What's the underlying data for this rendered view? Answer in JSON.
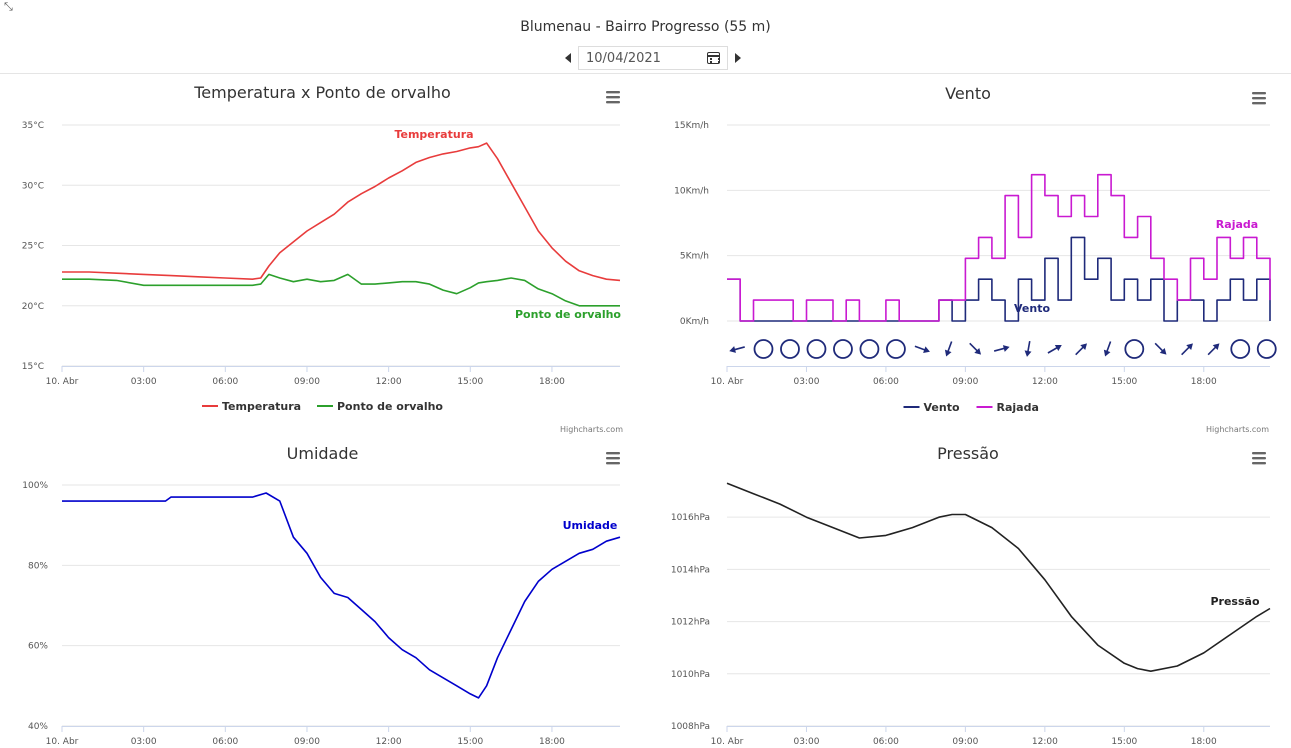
{
  "page": {
    "title": "Blumenau - Bairro Progresso (55 m)",
    "date_value": "10/04/2021"
  },
  "icons": [
    "prev-arrow-icon",
    "next-arrow-icon",
    "calendar-icon",
    "hamburger-menu-icon",
    "wind-direction-arrow-icon",
    "calm-circle-icon"
  ],
  "credits": "Highcharts.com",
  "chart_data": [
    {
      "type": "line",
      "title": "Temperatura x Ponto de orvalho",
      "x_ticks": [
        "10. Abr",
        "03:00",
        "06:00",
        "09:00",
        "12:00",
        "15:00",
        "18:00"
      ],
      "y_ticks": [
        "15°C",
        "20°C",
        "25°C",
        "30°C",
        "35°C"
      ],
      "ylim": [
        15,
        35
      ],
      "legend": "bottom-center",
      "grid": true,
      "x_hours": [
        0,
        1,
        2,
        3,
        4,
        5,
        6,
        7,
        7.3,
        7.6,
        8,
        8.5,
        9,
        9.5,
        10,
        10.5,
        11,
        11.5,
        12,
        12.5,
        13,
        13.5,
        14,
        14.5,
        15,
        15.3,
        15.6,
        16,
        16.5,
        17,
        17.5,
        18,
        18.5,
        19,
        19.5,
        20,
        20.5
      ],
      "series": [
        {
          "name": "Temperatura",
          "color": "#e83c3c",
          "values": [
            22.8,
            22.8,
            22.7,
            22.6,
            22.5,
            22.4,
            22.3,
            22.2,
            22.3,
            23.3,
            24.4,
            25.3,
            26.2,
            26.9,
            27.6,
            28.6,
            29.3,
            29.9,
            30.6,
            31.2,
            31.9,
            32.3,
            32.6,
            32.8,
            33.1,
            33.2,
            33.5,
            32.2,
            30.2,
            28.2,
            26.2,
            24.8,
            23.7,
            22.9,
            22.5,
            22.2,
            22.1
          ]
        },
        {
          "name": "Ponto de orvalho",
          "color": "#2ca02c",
          "values": [
            22.2,
            22.2,
            22.1,
            21.7,
            21.7,
            21.7,
            21.7,
            21.7,
            21.8,
            22.6,
            22.3,
            22.0,
            22.2,
            22.0,
            22.1,
            22.6,
            21.8,
            21.8,
            21.9,
            22.0,
            22.0,
            21.8,
            21.3,
            21.0,
            21.5,
            21.9,
            22.0,
            22.1,
            22.3,
            22.1,
            21.4,
            21.0,
            20.4,
            20.0,
            20.0,
            20.0,
            20.0
          ]
        }
      ]
    },
    {
      "type": "line",
      "title": "Vento",
      "x_ticks": [
        "10. Abr",
        "03:00",
        "06:00",
        "09:00",
        "12:00",
        "15:00",
        "18:00"
      ],
      "y_ticks": [
        "0Km/h",
        "5Km/h",
        "10Km/h",
        "15Km/h"
      ],
      "ylim": [
        0,
        15
      ],
      "legend": "bottom-center",
      "grid": true,
      "x_hours": [
        0,
        0.5,
        1,
        1.5,
        2,
        2.5,
        3,
        3.5,
        4,
        4.5,
        5,
        5.5,
        6,
        6.5,
        7,
        7.5,
        8,
        8.5,
        9,
        9.5,
        10,
        10.5,
        11,
        11.5,
        12,
        12.5,
        13,
        13.5,
        14,
        14.5,
        15,
        15.5,
        16,
        16.5,
        17,
        17.5,
        18,
        18.5,
        19,
        19.5,
        20,
        20.5
      ],
      "series": [
        {
          "name": "Vento",
          "color": "#1f2a7a",
          "values": [
            3.2,
            0,
            0,
            0,
            0,
            0,
            0,
            0,
            0,
            0,
            0,
            0,
            0,
            0,
            0,
            0,
            1.6,
            0,
            1.6,
            3.2,
            1.6,
            0,
            3.2,
            1.6,
            4.8,
            1.6,
            6.4,
            3.2,
            4.8,
            1.6,
            3.2,
            1.6,
            3.2,
            0,
            1.6,
            1.6,
            0,
            1.6,
            3.2,
            1.6,
            3.2,
            0
          ]
        },
        {
          "name": "Rajada",
          "color": "#c91ad1",
          "values": [
            3.2,
            0,
            1.6,
            1.6,
            1.6,
            0,
            1.6,
            1.6,
            0,
            1.6,
            0,
            0,
            1.6,
            0,
            0,
            0,
            1.6,
            1.6,
            4.8,
            6.4,
            4.8,
            9.6,
            6.4,
            11.2,
            9.6,
            8.0,
            9.6,
            8.0,
            11.2,
            9.6,
            6.4,
            8.0,
            4.8,
            3.2,
            1.6,
            4.8,
            3.2,
            6.4,
            4.8,
            6.4,
            4.8,
            1.6
          ]
        }
      ],
      "wind_direction_hours": [
        0,
        1,
        2,
        3,
        4,
        5,
        6,
        7,
        8,
        9,
        10,
        11,
        12,
        13,
        14,
        15,
        16,
        17,
        18,
        19,
        20
      ],
      "wind_direction_degrees": [
        255,
        null,
        null,
        null,
        null,
        null,
        null,
        110,
        200,
        135,
        75,
        190,
        60,
        45,
        200,
        null,
        135,
        45,
        45,
        null,
        null
      ]
    },
    {
      "type": "line",
      "title": "Umidade",
      "x_ticks": [
        "10. Abr",
        "03:00",
        "06:00",
        "09:00",
        "12:00",
        "15:00",
        "18:00"
      ],
      "y_ticks": [
        "40%",
        "60%",
        "80%",
        "100%"
      ],
      "ylim": [
        40,
        100
      ],
      "legend": "none",
      "grid": true,
      "x_hours": [
        0,
        1,
        2,
        3,
        3.8,
        4,
        5,
        6,
        7,
        7.5,
        8,
        8.5,
        9,
        9.5,
        10,
        10.5,
        11,
        11.5,
        12,
        12.5,
        13,
        13.5,
        14,
        14.5,
        15,
        15.3,
        15.6,
        16,
        16.5,
        17,
        17.5,
        18,
        18.5,
        19,
        19.5,
        20,
        20.5
      ],
      "series": [
        {
          "name": "Umidade",
          "color": "#0000cc",
          "values": [
            96,
            96,
            96,
            96,
            96,
            97,
            97,
            97,
            97,
            98,
            96,
            87,
            83,
            77,
            73,
            72,
            69,
            66,
            62,
            59,
            57,
            54,
            52,
            50,
            48,
            47,
            50,
            57,
            64,
            71,
            76,
            79,
            81,
            83,
            84,
            86,
            87
          ]
        }
      ]
    },
    {
      "type": "line",
      "title": "Pressão",
      "x_ticks": [
        "10. Abr",
        "03:00",
        "06:00",
        "09:00",
        "12:00",
        "15:00",
        "18:00"
      ],
      "y_ticks": [
        "1008hPa",
        "1010hPa",
        "1012hPa",
        "1014hPa",
        "1016hPa"
      ],
      "ylim": [
        1008,
        1017.5
      ],
      "legend": "none",
      "grid": true,
      "x_hours": [
        0,
        1,
        2,
        3,
        4,
        5,
        6,
        7,
        8,
        8.5,
        9,
        10,
        11,
        12,
        13,
        14,
        15,
        15.5,
        16,
        17,
        18,
        19,
        20,
        20.5
      ],
      "series": [
        {
          "name": "Pressão",
          "color": "#222222",
          "values": [
            1017.3,
            1016.9,
            1016.5,
            1016.0,
            1015.6,
            1015.2,
            1015.3,
            1015.6,
            1016.0,
            1016.1,
            1016.1,
            1015.6,
            1014.8,
            1013.6,
            1012.2,
            1011.1,
            1010.4,
            1010.2,
            1010.1,
            1010.3,
            1010.8,
            1011.5,
            1012.2,
            1012.5
          ]
        }
      ]
    }
  ]
}
